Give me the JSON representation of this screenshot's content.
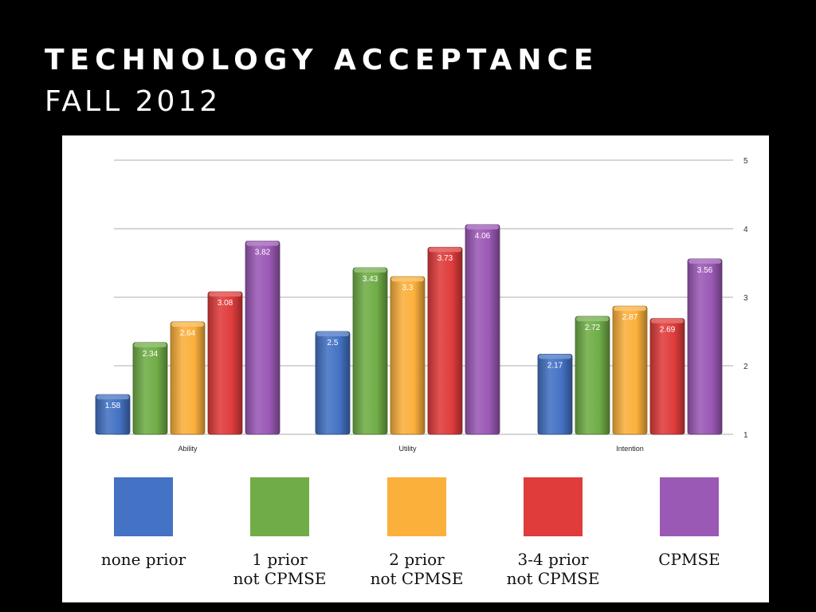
{
  "slide": {
    "title": "TECHNOLOGY ACCEPTANCE",
    "subtitle": "FALL 2012"
  },
  "chart_data": {
    "type": "bar",
    "categories": [
      "Ability",
      "Utility",
      "Intention"
    ],
    "ylim": [
      1,
      5
    ],
    "yticks": [
      1,
      2,
      3,
      4,
      5
    ],
    "grid": true,
    "legend_position": "bottom",
    "series": [
      {
        "name": "none prior",
        "legend_lines": [
          "none prior"
        ],
        "color": "#4472c4",
        "values": [
          1.58,
          2.5,
          2.17
        ]
      },
      {
        "name": "1 prior not CPMSE",
        "legend_lines": [
          "1 prior",
          "not CPMSE"
        ],
        "color": "#70ad47",
        "values": [
          2.34,
          3.43,
          2.72
        ]
      },
      {
        "name": "2 prior not CPMSE",
        "legend_lines": [
          "2 prior",
          "not CPMSE"
        ],
        "color": "#fbb03b",
        "values": [
          2.64,
          3.3,
          2.87
        ]
      },
      {
        "name": "3-4 prior not CPMSE",
        "legend_lines": [
          "3-4 prior",
          "not CPMSE"
        ],
        "color": "#e03c3c",
        "values": [
          3.08,
          3.73,
          2.69
        ]
      },
      {
        "name": "CPMSE",
        "legend_lines": [
          "CPMSE"
        ],
        "color": "#9b59b6",
        "values": [
          3.82,
          4.06,
          3.56
        ]
      }
    ]
  }
}
